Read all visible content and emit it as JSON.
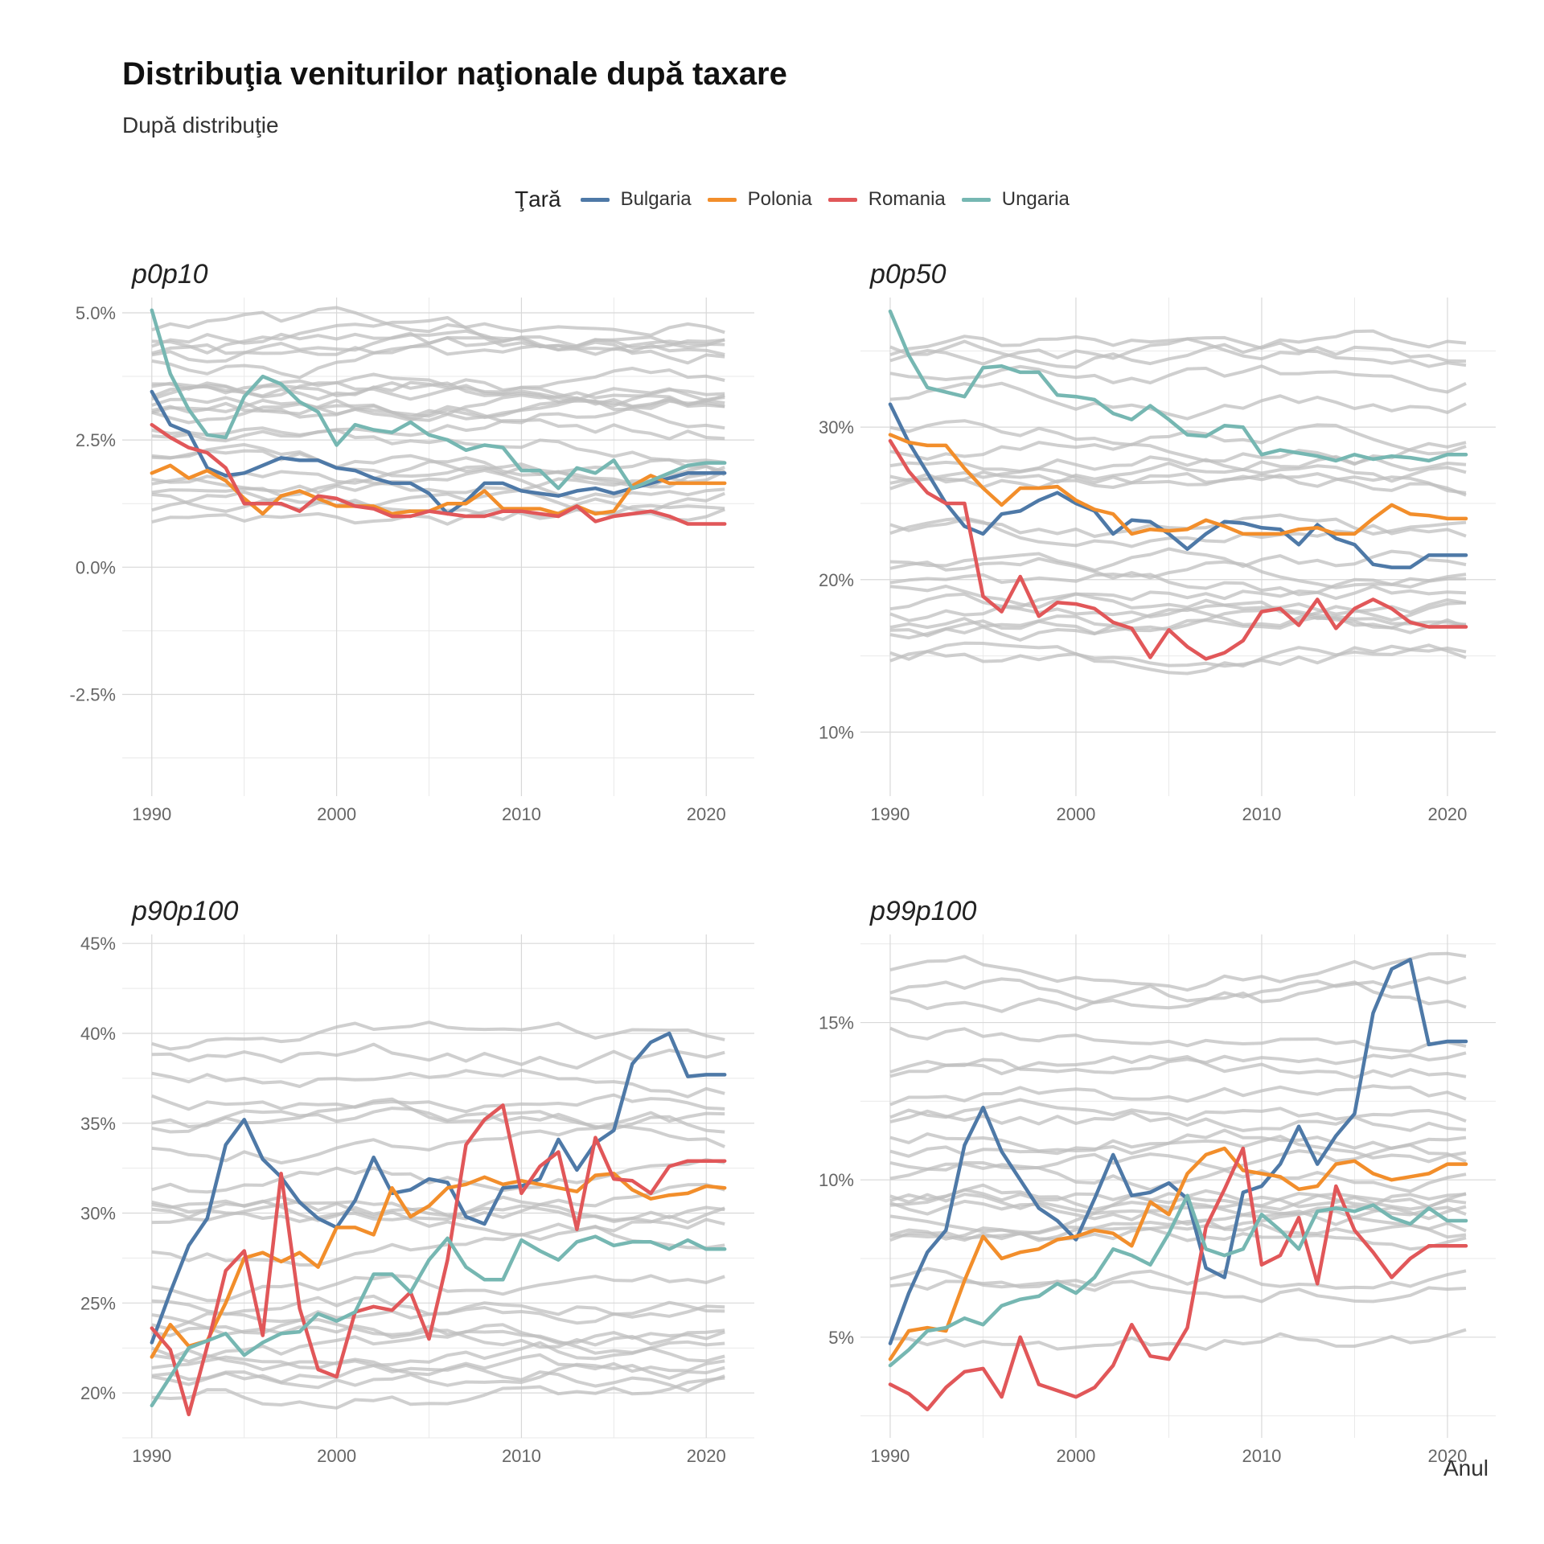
{
  "title": "Distribuţia veniturilor naţionale după taxare",
  "subtitle": "După distribuţie",
  "x_axis_caption": "Anul",
  "legend": {
    "title": "Ţară",
    "items": [
      {
        "label": "Bulgaria",
        "color": "#4e79a7"
      },
      {
        "label": "Polonia",
        "color": "#f28e2b"
      },
      {
        "label": "Romania",
        "color": "#e15759"
      },
      {
        "label": "Ungaria",
        "color": "#76b7b2"
      }
    ]
  },
  "background_color": "#bfbfbf",
  "chart_data": [
    {
      "type": "line",
      "title": "p0p10",
      "xlim": [
        1988.4,
        2022.6
      ],
      "ylim": [
        -4.5,
        5.3
      ],
      "x_ticks": [
        1990,
        2000,
        2010,
        2020
      ],
      "y_ticks": [
        5.0,
        2.5,
        0.0,
        -2.5
      ],
      "y_tick_labels": [
        "5.0%",
        "2.5%",
        "0.0%",
        "-2.5%"
      ],
      "series": [
        {
          "name": "Bulgaria",
          "color": "#4e79a7",
          "x_start": 1990,
          "values": [
            3.45,
            2.8,
            2.65,
            1.95,
            1.8,
            1.85,
            2.0,
            2.15,
            2.1,
            2.1,
            1.95,
            1.9,
            1.75,
            1.65,
            1.65,
            1.45,
            1.05,
            1.3,
            1.65,
            1.65,
            1.5,
            1.45,
            1.4,
            1.5,
            1.55,
            1.45,
            1.55,
            1.65,
            1.75,
            1.85,
            1.85,
            1.85
          ]
        },
        {
          "name": "Polonia",
          "color": "#f28e2b",
          "x_start": 1990,
          "values": [
            1.85,
            2.0,
            1.75,
            1.9,
            1.7,
            1.35,
            1.05,
            1.4,
            1.5,
            1.35,
            1.2,
            1.2,
            1.2,
            1.05,
            1.1,
            1.1,
            1.25,
            1.25,
            1.5,
            1.15,
            1.15,
            1.15,
            1.05,
            1.2,
            1.05,
            1.1,
            1.6,
            1.8,
            1.65,
            1.65,
            1.65,
            1.65
          ]
        },
        {
          "name": "Romania",
          "color": "#e15759",
          "x_start": 1990,
          "values": [
            2.8,
            2.55,
            2.35,
            2.25,
            1.95,
            1.25,
            1.25,
            1.25,
            1.1,
            1.4,
            1.35,
            1.2,
            1.15,
            1.0,
            1.0,
            1.1,
            1.05,
            1.0,
            1.0,
            1.1,
            1.1,
            1.05,
            1.0,
            1.2,
            0.9,
            1.0,
            1.05,
            1.1,
            1.0,
            0.85,
            0.85,
            0.85
          ]
        },
        {
          "name": "Ungaria",
          "color": "#76b7b2",
          "x_start": 1990,
          "values": [
            5.05,
            3.8,
            3.1,
            2.6,
            2.55,
            3.35,
            3.75,
            3.6,
            3.25,
            3.05,
            2.4,
            2.8,
            2.7,
            2.65,
            2.85,
            2.6,
            2.5,
            2.3,
            2.4,
            2.35,
            1.9,
            1.9,
            1.55,
            1.95,
            1.85,
            2.1,
            1.55,
            1.7,
            1.85,
            2.0,
            2.05,
            2.05
          ]
        }
      ]
    },
    {
      "type": "line",
      "title": "p0p50",
      "xlim": [
        1988.4,
        2022.6
      ],
      "ylim": [
        5.8,
        38.5
      ],
      "x_ticks": [
        1990,
        2000,
        2010,
        2020
      ],
      "y_ticks": [
        30,
        20,
        10
      ],
      "y_tick_labels": [
        "30%",
        "20%",
        "10%"
      ],
      "series": [
        {
          "name": "Bulgaria",
          "color": "#4e79a7",
          "x_start": 1990,
          "values": [
            31.5,
            29.0,
            27.0,
            25.0,
            23.5,
            23.0,
            24.3,
            24.5,
            25.2,
            25.7,
            25.0,
            24.5,
            23.0,
            23.9,
            23.8,
            23.0,
            22.0,
            23.0,
            23.8,
            23.7,
            23.4,
            23.3,
            22.3,
            23.6,
            22.7,
            22.3,
            21.0,
            20.8,
            20.8,
            21.6,
            21.6,
            21.6
          ]
        },
        {
          "name": "Polonia",
          "color": "#f28e2b",
          "x_start": 1990,
          "values": [
            29.5,
            29.0,
            28.8,
            28.8,
            27.3,
            26.0,
            24.9,
            26.0,
            26.0,
            26.1,
            25.2,
            24.6,
            24.3,
            23.0,
            23.3,
            23.2,
            23.3,
            23.9,
            23.5,
            23.0,
            23.0,
            23.0,
            23.3,
            23.4,
            23.0,
            23.0,
            24.0,
            24.9,
            24.3,
            24.2,
            24.0,
            24.0
          ]
        },
        {
          "name": "Romania",
          "color": "#e15759",
          "x_start": 1990,
          "values": [
            29.1,
            27.1,
            25.7,
            25.0,
            25.0,
            18.9,
            17.9,
            20.2,
            17.6,
            18.5,
            18.4,
            18.1,
            17.2,
            16.8,
            14.9,
            16.7,
            15.6,
            14.8,
            15.2,
            16.0,
            17.9,
            18.1,
            17.0,
            18.7,
            16.8,
            18.1,
            18.7,
            18.1,
            17.2,
            16.9,
            16.9,
            16.9
          ]
        },
        {
          "name": "Ungaria",
          "color": "#76b7b2",
          "x_start": 1990,
          "values": [
            37.6,
            34.7,
            32.6,
            32.3,
            32.0,
            33.9,
            34.0,
            33.6,
            33.6,
            32.1,
            32.0,
            31.8,
            30.9,
            30.5,
            31.4,
            30.5,
            29.5,
            29.4,
            30.1,
            30.0,
            28.2,
            28.5,
            28.3,
            28.1,
            27.8,
            28.2,
            27.9,
            28.1,
            28.0,
            27.8,
            28.2,
            28.2
          ]
        }
      ]
    },
    {
      "type": "line",
      "title": "p90p100",
      "xlim": [
        1988.4,
        2022.6
      ],
      "ylim": [
        17.5,
        45.5
      ],
      "x_ticks": [
        1990,
        2000,
        2010,
        2020
      ],
      "y_ticks": [
        45,
        40,
        35,
        30,
        25,
        20
      ],
      "y_tick_labels": [
        "45%",
        "40%",
        "35%",
        "30%",
        "25%",
        "20%"
      ],
      "series": [
        {
          "name": "Bulgaria",
          "color": "#4e79a7",
          "x_start": 1990,
          "values": [
            22.8,
            25.6,
            28.2,
            29.7,
            33.8,
            35.2,
            33.0,
            32.0,
            30.6,
            29.7,
            29.2,
            30.7,
            33.1,
            31.1,
            31.3,
            31.9,
            31.7,
            29.8,
            29.4,
            31.4,
            31.5,
            31.9,
            34.1,
            32.4,
            33.9,
            34.6,
            38.3,
            39.5,
            40.0,
            37.6,
            37.7,
            37.7
          ]
        },
        {
          "name": "Polonia",
          "color": "#f28e2b",
          "x_start": 1990,
          "values": [
            22.0,
            23.8,
            22.6,
            22.9,
            25.0,
            27.5,
            27.8,
            27.3,
            27.8,
            27.0,
            29.2,
            29.2,
            28.8,
            31.4,
            29.8,
            30.4,
            31.4,
            31.6,
            32.0,
            31.6,
            31.8,
            31.6,
            31.4,
            31.2,
            32.1,
            32.2,
            31.3,
            30.8,
            31.0,
            31.1,
            31.5,
            31.4
          ]
        },
        {
          "name": "Romania",
          "color": "#e15759",
          "x_start": 1990,
          "values": [
            23.6,
            22.4,
            18.8,
            22.6,
            26.8,
            27.9,
            23.2,
            32.2,
            24.7,
            21.3,
            20.9,
            24.5,
            24.8,
            24.6,
            25.6,
            23.0,
            27.4,
            33.8,
            35.2,
            36.0,
            31.1,
            32.6,
            33.4,
            29.1,
            34.2,
            31.9,
            31.8,
            31.1,
            32.6,
            32.9,
            32.9,
            32.9
          ]
        },
        {
          "name": "Ungaria",
          "color": "#76b7b2",
          "x_start": 1990,
          "values": [
            19.3,
            20.9,
            22.5,
            22.9,
            23.3,
            22.1,
            22.8,
            23.3,
            23.4,
            24.4,
            24.0,
            24.5,
            26.6,
            26.6,
            25.6,
            27.4,
            28.6,
            27.0,
            26.3,
            26.3,
            28.5,
            27.9,
            27.4,
            28.4,
            28.7,
            28.2,
            28.4,
            28.4,
            28.0,
            28.5,
            28.0,
            28.0
          ]
        }
      ]
    },
    {
      "type": "line",
      "title": "p99p100",
      "xlim": [
        1988.4,
        2022.6
      ],
      "ylim": [
        1.8,
        17.8
      ],
      "x_ticks": [
        1990,
        2000,
        2010,
        2020
      ],
      "y_ticks": [
        15,
        10,
        5
      ],
      "y_tick_labels": [
        "15%",
        "10%",
        "5%"
      ],
      "series": [
        {
          "name": "Bulgaria",
          "color": "#4e79a7",
          "x_start": 1990,
          "values": [
            4.8,
            6.4,
            7.7,
            8.4,
            11.1,
            12.3,
            10.9,
            10.0,
            9.1,
            8.7,
            8.1,
            9.4,
            10.8,
            9.5,
            9.6,
            9.9,
            9.4,
            7.2,
            6.9,
            9.6,
            9.8,
            10.5,
            11.7,
            10.5,
            11.4,
            12.1,
            15.3,
            16.7,
            17.0,
            14.3,
            14.4,
            14.4
          ]
        },
        {
          "name": "Polonia",
          "color": "#f28e2b",
          "x_start": 1990,
          "values": [
            4.3,
            5.2,
            5.3,
            5.2,
            6.8,
            8.2,
            7.5,
            7.7,
            7.8,
            8.1,
            8.2,
            8.4,
            8.3,
            7.9,
            9.3,
            8.9,
            10.2,
            10.8,
            11.0,
            10.3,
            10.2,
            10.1,
            9.7,
            9.8,
            10.5,
            10.6,
            10.2,
            10.0,
            10.1,
            10.2,
            10.5,
            10.5
          ]
        },
        {
          "name": "Romania",
          "color": "#e15759",
          "x_start": 1990,
          "values": [
            3.5,
            3.2,
            2.7,
            3.4,
            3.9,
            4.0,
            3.1,
            5.0,
            3.5,
            3.3,
            3.1,
            3.4,
            4.1,
            5.4,
            4.4,
            4.3,
            5.3,
            8.5,
            9.7,
            11.0,
            7.3,
            7.6,
            8.8,
            6.7,
            9.8,
            8.4,
            7.7,
            6.9,
            7.5,
            7.9,
            7.9,
            7.9
          ]
        },
        {
          "name": "Ungaria",
          "color": "#76b7b2",
          "x_start": 1990,
          "values": [
            4.1,
            4.6,
            5.2,
            5.3,
            5.6,
            5.4,
            6.0,
            6.2,
            6.3,
            6.7,
            6.4,
            6.9,
            7.8,
            7.6,
            7.3,
            8.3,
            9.5,
            7.8,
            7.6,
            7.8,
            8.9,
            8.4,
            7.8,
            9.0,
            9.1,
            9.0,
            9.2,
            8.8,
            8.6,
            9.1,
            8.7,
            8.7
          ]
        }
      ]
    }
  ]
}
